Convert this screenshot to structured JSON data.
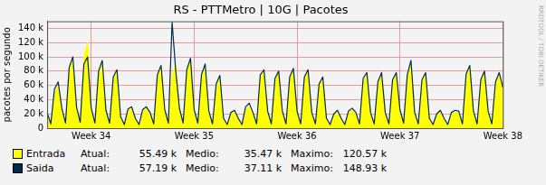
{
  "chart_data": {
    "type": "line",
    "title": "RS - PTTMetro | 10G | Pacotes",
    "y_label": "pacotes por segundo",
    "watermark": "RRDTOOL / TOBI OETIKER",
    "grid": true,
    "ylim": [
      0,
      150000
    ],
    "yticks": [
      0,
      {
        "value": 20000,
        "label": "20 k"
      },
      {
        "value": 40000,
        "label": "40 k"
      },
      {
        "value": 60000,
        "label": "60 k"
      },
      {
        "value": 80000,
        "label": "80 k"
      },
      {
        "value": 100000,
        "label": "100 k"
      },
      {
        "value": 120000,
        "label": "120 k"
      },
      {
        "value": 140000,
        "label": "140 k"
      }
    ],
    "categories": [
      null,
      null,
      null,
      null,
      null,
      null,
      null,
      null,
      null,
      null,
      null,
      null,
      "Week 34",
      null,
      null,
      null,
      null,
      null,
      null,
      null,
      null,
      null,
      null,
      null,
      null,
      null,
      null,
      null,
      null,
      null,
      null,
      null,
      null,
      null,
      null,
      null,
      null,
      null,
      null,
      null,
      "Week 35",
      null,
      null,
      null,
      null,
      null,
      null,
      null,
      null,
      null,
      null,
      null,
      null,
      null,
      null,
      null,
      null,
      null,
      null,
      null,
      null,
      null,
      null,
      null,
      null,
      null,
      null,
      null,
      "Week 36",
      null,
      null,
      null,
      null,
      null,
      null,
      null,
      null,
      null,
      null,
      null,
      null,
      null,
      null,
      null,
      null,
      null,
      null,
      null,
      null,
      null,
      null,
      null,
      null,
      null,
      null,
      null,
      "Week 37",
      null,
      null,
      null,
      null,
      null,
      null,
      null,
      null,
      null,
      null,
      null,
      null,
      null,
      null,
      null,
      null,
      null,
      null,
      null,
      null,
      null,
      null,
      null,
      null,
      null,
      null,
      null,
      "Week 38"
    ],
    "series": [
      {
        "name": "Entrada",
        "type": "area",
        "color": "#ffff00",
        "stats": [
          {
            "label": "Atual:",
            "value": 55490,
            "text": "55.49 k"
          },
          {
            "label": "Medio:",
            "value": 35470,
            "text": "35.47 k"
          },
          {
            "label": "Maximo:",
            "value": 120570,
            "text": "120.57 k"
          }
        ],
        "values": [
          20000,
          5000,
          50000,
          60000,
          25000,
          6000,
          80000,
          95000,
          30000,
          7000,
          100000,
          120570,
          28000,
          6000,
          75000,
          90000,
          25000,
          6000,
          70000,
          80000,
          15000,
          4000,
          25000,
          28000,
          12000,
          4000,
          24000,
          28000,
          20000,
          5000,
          70000,
          85000,
          25000,
          6000,
          75000,
          90000,
          28000,
          6000,
          80000,
          95000,
          25000,
          6000,
          70000,
          85000,
          22000,
          5000,
          60000,
          70000,
          12000,
          4000,
          20000,
          22000,
          12000,
          4000,
          26000,
          30000,
          20000,
          5000,
          70000,
          80000,
          22000,
          5000,
          68000,
          78000,
          22000,
          5000,
          70000,
          82000,
          22000,
          5000,
          70000,
          80000,
          20000,
          5000,
          60000,
          70000,
          12000,
          4000,
          18000,
          22000,
          12000,
          4000,
          22000,
          25000,
          20000,
          5000,
          65000,
          75000,
          20000,
          5000,
          62000,
          75000,
          20000,
          5000,
          65000,
          75000,
          25000,
          6000,
          70000,
          90000,
          20000,
          5000,
          65000,
          75000,
          12000,
          4000,
          18000,
          22000,
          12000,
          4000,
          20000,
          22000,
          22000,
          5000,
          72000,
          85000,
          22000,
          5000,
          65000,
          78000,
          22000,
          5000,
          62000,
          75000,
          55490
        ]
      },
      {
        "name": "Saida",
        "type": "line",
        "color": "#002a50",
        "stats": [
          {
            "label": "Atual:",
            "value": 57190,
            "text": "57.19 k"
          },
          {
            "label": "Medio:",
            "value": 37110,
            "text": "37.11 k"
          },
          {
            "label": "Maximo:",
            "value": 148930,
            "text": "148.93 k"
          }
        ],
        "values": [
          22000,
          6000,
          55000,
          65000,
          28000,
          7000,
          85000,
          100000,
          30000,
          8000,
          90000,
          100000,
          28000,
          7000,
          80000,
          95000,
          25000,
          7000,
          72000,
          82000,
          16000,
          5000,
          27000,
          30000,
          14000,
          5000,
          26000,
          30000,
          22000,
          6000,
          75000,
          88000,
          26000,
          7000,
          148930,
          80000,
          28000,
          7000,
          82000,
          98000,
          26000,
          7000,
          75000,
          90000,
          24000,
          6000,
          62000,
          74000,
          14000,
          5000,
          22000,
          25000,
          14000,
          5000,
          30000,
          35000,
          22000,
          6000,
          75000,
          82000,
          24000,
          6000,
          70000,
          80000,
          24000,
          6000,
          72000,
          84000,
          24000,
          6000,
          72000,
          82000,
          22000,
          6000,
          62000,
          72000,
          14000,
          5000,
          20000,
          25000,
          14000,
          5000,
          24000,
          28000,
          22000,
          6000,
          70000,
          78000,
          22000,
          6000,
          65000,
          78000,
          22000,
          6000,
          68000,
          78000,
          26000,
          7000,
          75000,
          95000,
          22000,
          6000,
          68000,
          78000,
          14000,
          5000,
          20000,
          25000,
          14000,
          5000,
          22000,
          25000,
          24000,
          6000,
          76000,
          88000,
          24000,
          6000,
          68000,
          80000,
          24000,
          6000,
          65000,
          78000,
          57190
        ]
      }
    ]
  }
}
